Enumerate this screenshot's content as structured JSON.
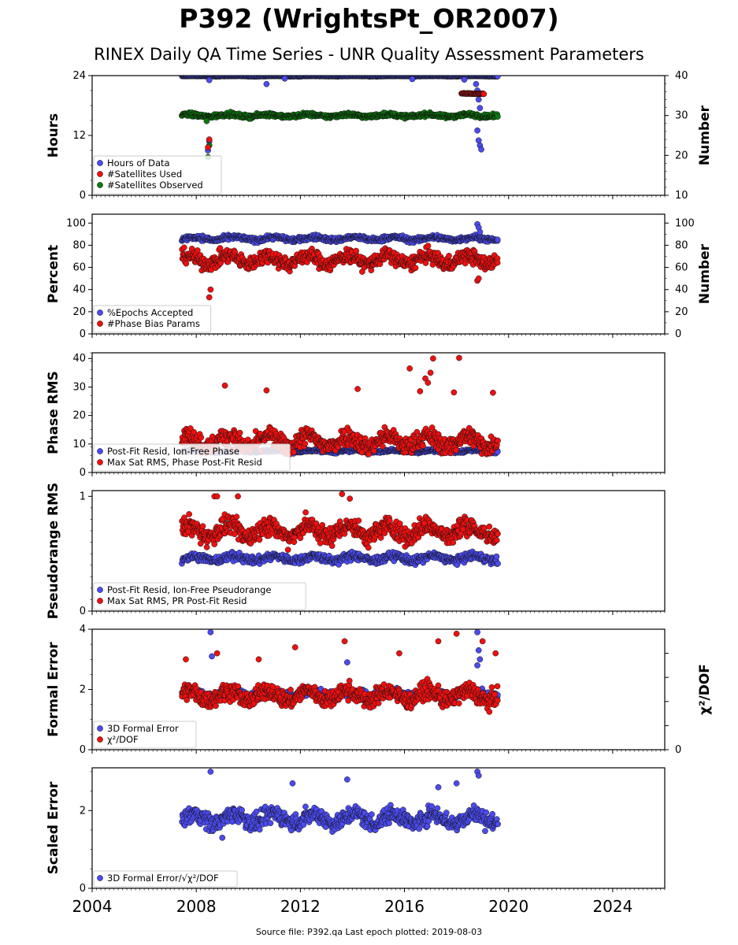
{
  "header": {
    "title": "P392 (WrightsPt_OR2007)",
    "subtitle": "RINEX Daily QA Time Series - UNR Quality Assessment Parameters"
  },
  "footer": {
    "text": "Source file: P392.qa Last epoch plotted: 2019-08-03"
  },
  "colors": {
    "blue": "#4b4bef",
    "red": "#ee1010",
    "green": "#0c7a0c",
    "darkred": "#6a0000"
  },
  "chart_data": {
    "type": "scatter",
    "x_axis": {
      "range": [
        2004,
        2026
      ],
      "ticks": [
        2004,
        2008,
        2012,
        2016,
        2020,
        2024
      ],
      "data_start": 2007.45,
      "data_end": 2019.59
    },
    "panels": [
      {
        "ylabel": "Hours",
        "y2label": "Number",
        "ylim": [
          0,
          24
        ],
        "yticks": [
          "0",
          "12",
          "24"
        ],
        "y2lim": [
          10,
          40
        ],
        "y2ticks": [
          "10",
          "20",
          "30",
          "40"
        ],
        "legend": [
          "Hours of Data",
          "#Satellites Used",
          "#Satellites Observed"
        ],
        "legend_colors": [
          "#4b4bef",
          "#ee1010",
          "#0c7a0c"
        ],
        "series": [
          {
            "name": "Hours of Data",
            "axis": "left",
            "base": 23.9,
            "sd": 0.05,
            "outliers": [
              [
                2008.5,
                23.1
              ],
              [
                2010.7,
                22.3
              ],
              [
                2011.4,
                23.4
              ],
              [
                2016.3,
                23.3
              ],
              [
                2018.3,
                23.2
              ],
              [
                2018.75,
                22.3
              ],
              [
                2018.8,
                21.0
              ],
              [
                2018.85,
                19.2
              ],
              [
                2018.9,
                17.5
              ],
              [
                2018.95,
                15.8
              ],
              [
                2018.8,
                13.0
              ],
              [
                2018.85,
                11.0
              ],
              [
                2018.9,
                10.0
              ],
              [
                2018.95,
                9.2
              ],
              [
                2008.5,
                10.8
              ],
              [
                2008.45,
                9.0
              ]
            ]
          },
          {
            "name": "#Satellites Observed",
            "axis": "right",
            "base": 30.0,
            "sd": 0.45,
            "outliers": [
              [
                2008.45,
                19.6
              ],
              [
                2008.5,
                22.5
              ],
              [
                2008.4,
                28.6
              ]
            ]
          },
          {
            "name": "#Satellites Used",
            "axis": "right",
            "base": 35.5,
            "sd": 0.1,
            "from": 2018.2,
            "to": 2019.05,
            "outliers": [
              [
                2008.45,
                22.0
              ],
              [
                2008.5,
                24.0
              ]
            ]
          }
        ]
      },
      {
        "ylabel": "Percent",
        "y2label": "Number",
        "ylim": [
          0,
          108
        ],
        "yticks": [
          "0",
          "20",
          "40",
          "60",
          "80",
          "100"
        ],
        "y2lim": [
          0,
          108
        ],
        "y2ticks": [
          "0",
          "20",
          "40",
          "60",
          "80",
          "100"
        ],
        "legend": [
          "%Epochs Accepted",
          "#Phase Bias Params"
        ],
        "legend_colors": [
          "#4b4bef",
          "#ee1010"
        ],
        "series": [
          {
            "name": "%Epochs Accepted",
            "axis": "left",
            "base": 86,
            "sd": 2.2,
            "outliers": [
              [
                2018.8,
                99
              ],
              [
                2018.85,
                96
              ],
              [
                2018.9,
                92
              ]
            ]
          },
          {
            "name": "#Phase Bias Params",
            "axis": "right",
            "base": 67,
            "sd": 6.5,
            "outliers": [
              [
                2008.55,
                40
              ],
              [
                2008.5,
                33
              ],
              [
                2018.8,
                48
              ],
              [
                2018.85,
                50
              ]
            ]
          }
        ]
      },
      {
        "ylabel": "Phase RMS",
        "ylim": [
          0,
          42
        ],
        "yticks": [
          "0",
          "10",
          "20",
          "30",
          "40"
        ],
        "legend": [
          "Post-Fit Resid, Ion-Free Phase",
          "Max Sat RMS, Phase Post-Fit Resid"
        ],
        "legend_colors": [
          "#4b4bef",
          "#ee1010"
        ],
        "series": [
          {
            "name": "Post-Fit Resid, Ion-Free Phase",
            "axis": "left",
            "base": 7.5,
            "sd": 0.5
          },
          {
            "name": "Max Sat RMS, Phase Post-Fit Resid",
            "axis": "left",
            "base": 11,
            "sd": 3.2,
            "outliers": [
              [
                2009.1,
                30.5
              ],
              [
                2010.7,
                28.8
              ],
              [
                2016.2,
                36.5
              ],
              [
                2017.1,
                40.0
              ],
              [
                2018.1,
                40.2
              ],
              [
                2016.8,
                33.0
              ],
              [
                2016.9,
                31.5
              ],
              [
                2017.0,
                35.0
              ],
              [
                2014.2,
                29.3
              ],
              [
                2017.9,
                28.1
              ],
              [
                2019.4,
                28.0
              ],
              [
                2016.6,
                28.5
              ]
            ]
          }
        ]
      },
      {
        "ylabel": "Pseudorange RMS",
        "ylim": [
          0,
          1.05
        ],
        "yticks": [
          "0",
          "1"
        ],
        "legend": [
          "Post-Fit Resid, Ion-Free Pseudorange",
          "Max Sat RMS, PR Post-Fit Resid"
        ],
        "legend_colors": [
          "#4b4bef",
          "#ee1010"
        ],
        "series": [
          {
            "name": "Post-Fit Resid, Ion-Free Pseudorange",
            "axis": "left",
            "base": 0.46,
            "sd": 0.035
          },
          {
            "name": "Max Sat RMS, PR Post-Fit Resid",
            "axis": "left",
            "base": 0.7,
            "sd": 0.085,
            "outliers": [
              [
                2008.7,
                1.0
              ],
              [
                2008.8,
                1.0
              ],
              [
                2009.6,
                1.0
              ],
              [
                2013.6,
                1.02
              ],
              [
                2013.9,
                0.98
              ]
            ]
          }
        ]
      },
      {
        "ylabel": "Formal Error",
        "y2label": "χ²/DOF",
        "ylim": [
          0,
          4
        ],
        "yticks": [
          "0",
          "2",
          "4"
        ],
        "y2ticks": [
          "0"
        ],
        "legend": [
          "3D Formal Error",
          "χ²/DOF"
        ],
        "legend_colors": [
          "#4b4bef",
          "#ee1010"
        ],
        "series": [
          {
            "name": "3D Formal Error",
            "axis": "left",
            "base": 1.85,
            "sd": 0.12,
            "outliers": [
              [
                2008.55,
                3.9
              ],
              [
                2008.6,
                3.1
              ],
              [
                2013.8,
                2.9
              ],
              [
                2018.8,
                3.9
              ],
              [
                2018.85,
                3.3
              ],
              [
                2018.9,
                3.0
              ],
              [
                2018.8,
                2.8
              ]
            ]
          },
          {
            "name": "χ²/DOF",
            "axis": "left",
            "base": 1.8,
            "sd": 0.28,
            "outliers": [
              [
                2007.6,
                3.0
              ],
              [
                2008.8,
                3.2
              ],
              [
                2010.4,
                3.0
              ],
              [
                2011.8,
                3.4
              ],
              [
                2013.7,
                3.6
              ],
              [
                2017.3,
                3.6
              ],
              [
                2018.0,
                3.85
              ],
              [
                2019.0,
                3.6
              ],
              [
                2019.5,
                3.2
              ],
              [
                2015.8,
                3.2
              ]
            ]
          }
        ]
      },
      {
        "ylabel": "Scaled Error",
        "ylim": [
          0,
          3.1
        ],
        "yticks": [
          "0",
          "2"
        ],
        "legend": [
          "3D Formal Error/√χ²/DOF"
        ],
        "legend_colors": [
          "#4b4bef"
        ],
        "series": [
          {
            "name": "3D Formal Error/√χ²/DOF",
            "axis": "left",
            "base": 1.8,
            "sd": 0.22,
            "outliers": [
              [
                2008.55,
                3.0
              ],
              [
                2018.8,
                3.0
              ],
              [
                2018.85,
                2.9
              ],
              [
                2013.8,
                2.8
              ],
              [
                2018.0,
                2.7
              ],
              [
                2011.7,
                2.7
              ],
              [
                2017.3,
                2.6
              ],
              [
                2009.0,
                1.3
              ]
            ]
          }
        ]
      }
    ]
  }
}
